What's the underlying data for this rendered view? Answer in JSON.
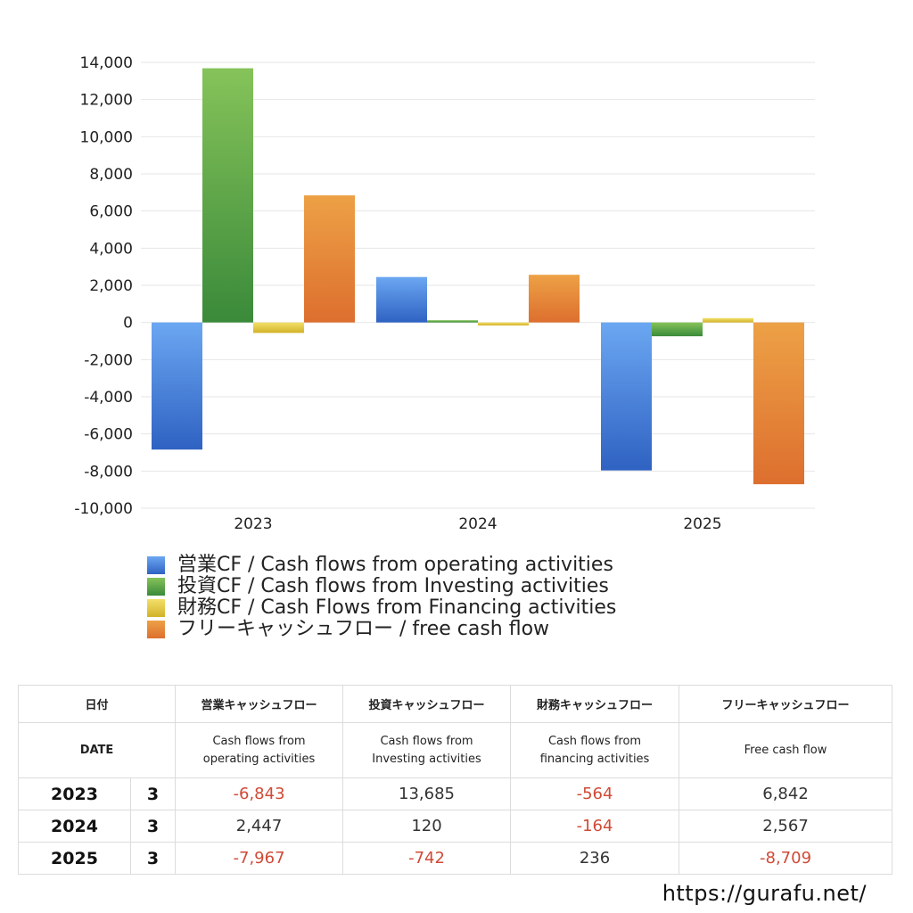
{
  "chart_data": {
    "type": "bar",
    "categories": [
      "2023",
      "2024",
      "2025"
    ],
    "series": [
      {
        "name": "営業CF / Cash flows from operating activities",
        "values": [
          -6843,
          2447,
          -7967
        ]
      },
      {
        "name": "投資CF / Cash flows from Investing activities",
        "values": [
          13685,
          120,
          -742
        ]
      },
      {
        "name": "財務CF / Cash Flows from Financing activities",
        "values": [
          -564,
          -164,
          236
        ]
      },
      {
        "name": "フリーキャッシュフロー / free cash flow",
        "values": [
          6842,
          2567,
          -8709
        ]
      }
    ],
    "yticks": [
      "14,000",
      "12,000",
      "10,000",
      "8,000",
      "6,000",
      "4,000",
      "2,000",
      "0",
      "-2,000",
      "-4,000",
      "-6,000",
      "-8,000",
      "-10,000"
    ],
    "ylim": [
      -10000,
      14000
    ],
    "grid": true,
    "legend_position": "bottom",
    "colors": {
      "operating": [
        "#6ba7f2",
        "#2f62c2"
      ],
      "investing": [
        "#86c35a",
        "#3a8a3a"
      ],
      "financing": [
        "#f2e06a",
        "#d2b228"
      ],
      "free": [
        "#eda146",
        "#dd6f2e"
      ]
    }
  },
  "table": {
    "headers": {
      "date": "日付",
      "operating": "営業キャッシュフロー",
      "investing": "投資キャッシュフロー",
      "financing": "財務キャッシュフロー",
      "free": "フリーキャッシュフロー"
    },
    "subheaders": {
      "date": "DATE",
      "operating_1": "Cash flows from",
      "operating_2": "operating activities",
      "investing_1": "Cash flows from",
      "investing_2": "Investing activities",
      "financing_1": "Cash flows from",
      "financing_2": "financing activities",
      "free": "Free cash flow"
    },
    "rows": [
      {
        "year": "2023",
        "month": "3",
        "operating": "-6,843",
        "investing": "13,685",
        "financing": "-564",
        "free": "6,842"
      },
      {
        "year": "2024",
        "month": "3",
        "operating": "2,447",
        "investing": "120",
        "financing": "-164",
        "free": "2,567"
      },
      {
        "year": "2025",
        "month": "3",
        "operating": "-7,967",
        "investing": "-742",
        "financing": "236",
        "free": "-8,709"
      }
    ]
  },
  "footer": {
    "url": "https://gurafu.net/"
  }
}
